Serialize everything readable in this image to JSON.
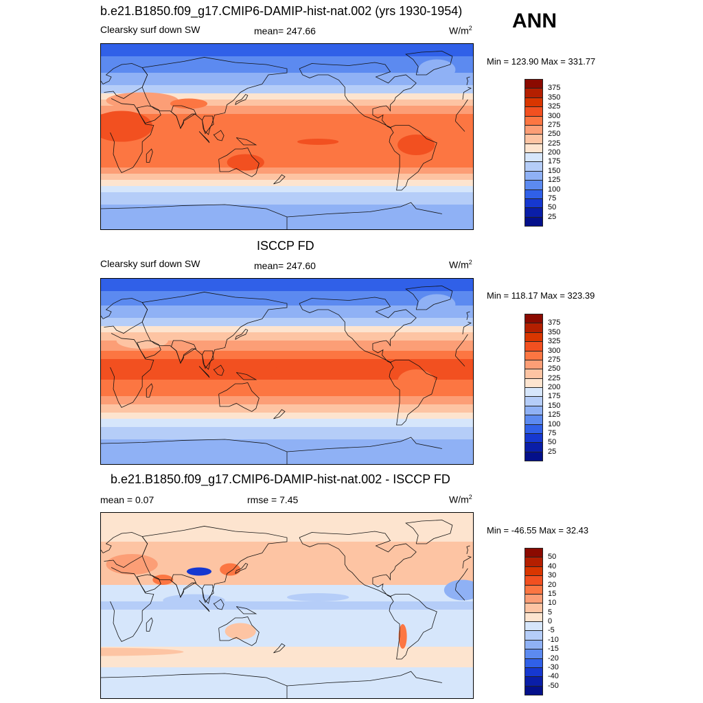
{
  "season": "ANN",
  "panels": [
    {
      "title": "b.e21.B1850.f09_g17.CMIP6-DAMIP-hist-nat.002 (yrs 1930-1954)",
      "variable": "Clearsky surf down SW",
      "stat1": "mean= 247.66",
      "stat2": "",
      "units_base": "W/m",
      "units_sup": "2",
      "minmax": "Min = 123.90 Max = 331.77",
      "colorbar": {
        "labels": [
          "375",
          "350",
          "325",
          "300",
          "275",
          "250",
          "225",
          "200",
          "175",
          "150",
          "125",
          "100",
          "75",
          "50",
          "25"
        ],
        "colors": [
          "#8b0a00",
          "#b41f00",
          "#d93600",
          "#f25020",
          "#fc7642",
          "#fc9e76",
          "#fdc4a3",
          "#fde4cf",
          "#d6e6fb",
          "#b5cdf8",
          "#8fb1f5",
          "#5c8af0",
          "#3060e8",
          "#1638d0",
          "#0a1ea8",
          "#04108a"
        ]
      },
      "map_bands": [
        {
          "lat_min": 78,
          "lat_max": 90,
          "color": "#3060e8"
        },
        {
          "lat_min": 62,
          "lat_max": 78,
          "color": "#5c8af0"
        },
        {
          "lat_min": 50,
          "lat_max": 62,
          "color": "#8fb1f5"
        },
        {
          "lat_min": 42,
          "lat_max": 50,
          "color": "#b5cdf8"
        },
        {
          "lat_min": 36,
          "lat_max": 42,
          "color": "#fde4cf"
        },
        {
          "lat_min": 30,
          "lat_max": 36,
          "color": "#fdc4a3"
        },
        {
          "lat_min": 22,
          "lat_max": 30,
          "color": "#fc9e76"
        },
        {
          "lat_min": -30,
          "lat_max": 22,
          "color": "#fc7642"
        },
        {
          "lat_min": -36,
          "lat_max": -30,
          "color": "#fc9e76"
        },
        {
          "lat_min": -42,
          "lat_max": -36,
          "color": "#fdc4a3"
        },
        {
          "lat_min": -48,
          "lat_max": -42,
          "color": "#fde4cf"
        },
        {
          "lat_min": -54,
          "lat_max": -48,
          "color": "#d6e6fb"
        },
        {
          "lat_min": -66,
          "lat_max": -54,
          "color": "#b5cdf8"
        },
        {
          "lat_min": -90,
          "lat_max": -66,
          "color": "#8fb1f5"
        }
      ]
    },
    {
      "title": "ISCCP FD",
      "variable": "Clearsky surf down SW",
      "stat1": "mean= 247.60",
      "stat2": "",
      "units_base": "W/m",
      "units_sup": "2",
      "minmax": "Min = 118.17 Max = 323.39",
      "colorbar": {
        "labels": [
          "375",
          "350",
          "325",
          "300",
          "275",
          "250",
          "225",
          "200",
          "175",
          "150",
          "125",
          "100",
          "75",
          "50",
          "25"
        ],
        "colors": [
          "#8b0a00",
          "#b41f00",
          "#d93600",
          "#f25020",
          "#fc7642",
          "#fc9e76",
          "#fdc4a3",
          "#fde4cf",
          "#d6e6fb",
          "#b5cdf8",
          "#8fb1f5",
          "#5c8af0",
          "#3060e8",
          "#1638d0",
          "#0a1ea8",
          "#04108a"
        ]
      },
      "map_bands": [
        {
          "lat_min": 78,
          "lat_max": 90,
          "color": "#3060e8"
        },
        {
          "lat_min": 64,
          "lat_max": 78,
          "color": "#5c8af0"
        },
        {
          "lat_min": 52,
          "lat_max": 64,
          "color": "#8fb1f5"
        },
        {
          "lat_min": 44,
          "lat_max": 52,
          "color": "#b5cdf8"
        },
        {
          "lat_min": 38,
          "lat_max": 44,
          "color": "#fde4cf"
        },
        {
          "lat_min": 30,
          "lat_max": 38,
          "color": "#fdc4a3"
        },
        {
          "lat_min": 20,
          "lat_max": 30,
          "color": "#fc9e76"
        },
        {
          "lat_min": 12,
          "lat_max": 20,
          "color": "#fc7642"
        },
        {
          "lat_min": -8,
          "lat_max": 12,
          "color": "#f25020"
        },
        {
          "lat_min": -24,
          "lat_max": -8,
          "color": "#fc7642"
        },
        {
          "lat_min": -32,
          "lat_max": -24,
          "color": "#fc9e76"
        },
        {
          "lat_min": -40,
          "lat_max": -32,
          "color": "#fdc4a3"
        },
        {
          "lat_min": -46,
          "lat_max": -40,
          "color": "#fde4cf"
        },
        {
          "lat_min": -54,
          "lat_max": -46,
          "color": "#d6e6fb"
        },
        {
          "lat_min": -66,
          "lat_max": -54,
          "color": "#b5cdf8"
        },
        {
          "lat_min": -90,
          "lat_max": -66,
          "color": "#8fb1f5"
        }
      ]
    },
    {
      "title": "b.e21.B1850.f09_g17.CMIP6-DAMIP-hist-nat.002 - ISCCP FD",
      "variable": "",
      "stat1": "mean =   0.07",
      "stat2": "rmse =   7.45",
      "units_base": "W/m",
      "units_sup": "2",
      "minmax": "Min = -46.55 Max =  32.43",
      "colorbar": {
        "labels": [
          "50",
          "40",
          "30",
          "20",
          "15",
          "10",
          "5",
          "0",
          "-5",
          "-10",
          "-15",
          "-20",
          "-30",
          "-40",
          "-50"
        ],
        "colors": [
          "#8b0a00",
          "#b41f00",
          "#d93600",
          "#f25020",
          "#fc7642",
          "#fc9e76",
          "#fdc4a3",
          "#fde4cf",
          "#d6e6fb",
          "#b5cdf8",
          "#8fb1f5",
          "#5c8af0",
          "#3060e8",
          "#1638d0",
          "#0a1ea8",
          "#04108a"
        ]
      },
      "map_bands": [
        {
          "lat_min": 62,
          "lat_max": 90,
          "color": "#fde4cf"
        },
        {
          "lat_min": 20,
          "lat_max": 62,
          "color": "#fdc4a3"
        },
        {
          "lat_min": 4,
          "lat_max": 20,
          "color": "#d6e6fb"
        },
        {
          "lat_min": -4,
          "lat_max": 4,
          "color": "#b5cdf8"
        },
        {
          "lat_min": -20,
          "lat_max": -4,
          "color": "#d6e6fb"
        },
        {
          "lat_min": -40,
          "lat_max": -20,
          "color": "#d6e6fb"
        },
        {
          "lat_min": -60,
          "lat_max": -40,
          "color": "#fde4cf"
        },
        {
          "lat_min": -90,
          "lat_max": -60,
          "color": "#d6e6fb"
        }
      ]
    }
  ]
}
